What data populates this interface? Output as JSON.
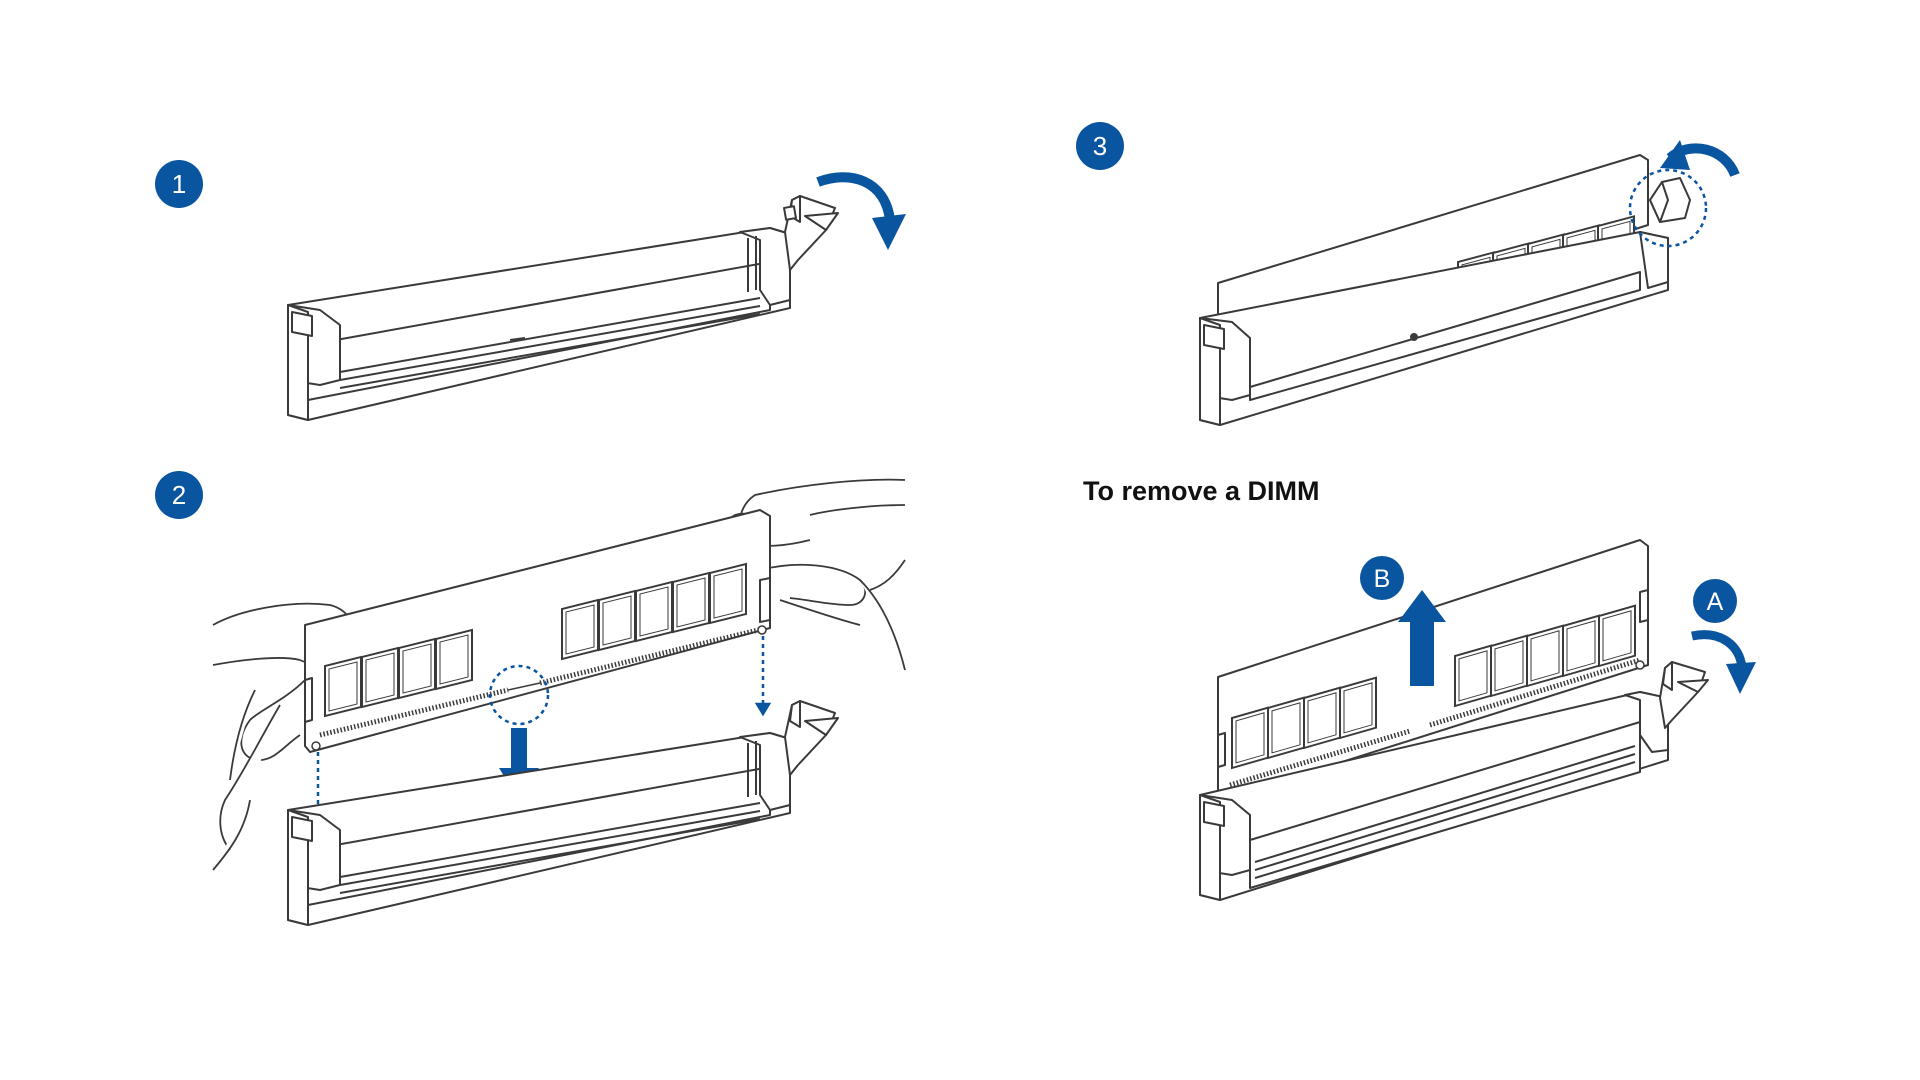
{
  "colors": {
    "accent_blue": "#0a55a0",
    "line": "#3a3a3a",
    "background": "#ffffff"
  },
  "steps": {
    "step1": {
      "number": "1"
    },
    "step2": {
      "number": "2"
    },
    "step3": {
      "number": "3"
    }
  },
  "remove_section": {
    "heading": "To remove a DIMM",
    "label_a": "A",
    "label_b": "B"
  },
  "icons": [
    "rotate-arrow-icon",
    "down-arrow-icon",
    "up-arrow-icon",
    "focus-circle-icon"
  ]
}
